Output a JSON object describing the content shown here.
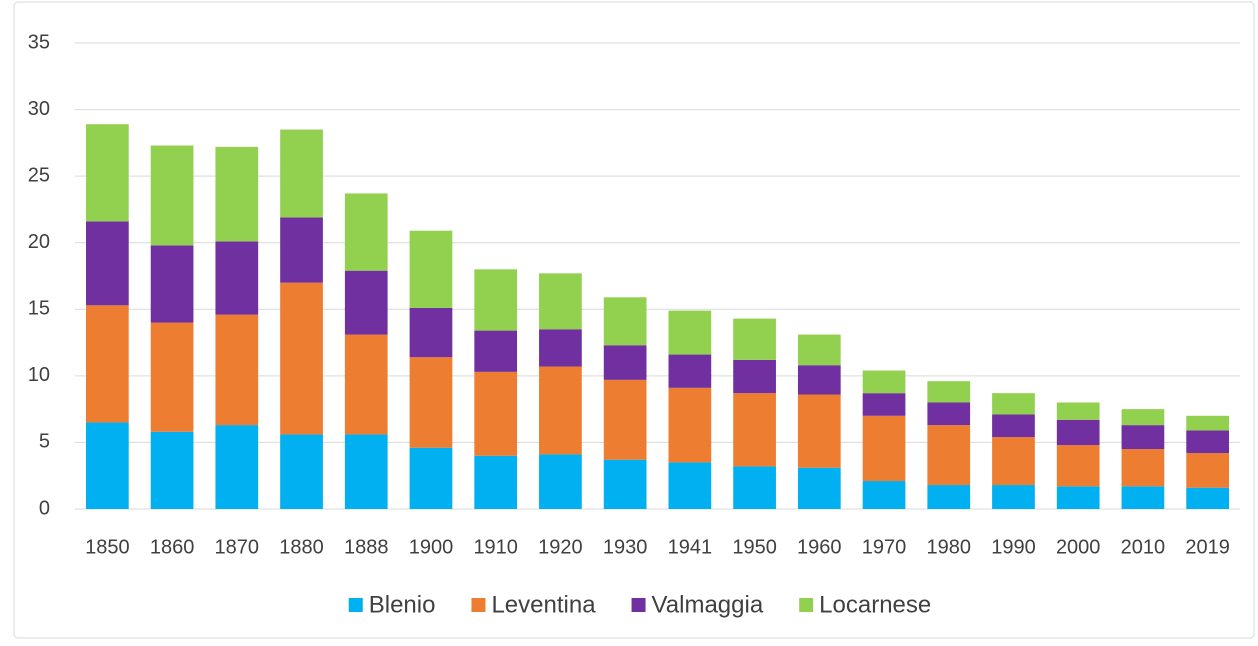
{
  "chart_data": {
    "type": "stacked_bar",
    "categories": [
      "1850",
      "1860",
      "1870",
      "1880",
      "1888",
      "1900",
      "1910",
      "1920",
      "1930",
      "1941",
      "1950",
      "1960",
      "1970",
      "1980",
      "1990",
      "2000",
      "2010",
      "2019"
    ],
    "series": [
      {
        "name": "Blenio",
        "color": "#00b0f0",
        "values": [
          6.5,
          5.8,
          6.3,
          5.6,
          5.6,
          4.6,
          4.0,
          4.1,
          3.7,
          3.5,
          3.2,
          3.1,
          2.1,
          1.8,
          1.8,
          1.7,
          1.7,
          1.6
        ]
      },
      {
        "name": "Leventina",
        "color": "#ed7d31",
        "values": [
          8.8,
          8.2,
          8.3,
          11.4,
          7.5,
          6.8,
          6.3,
          6.6,
          6.0,
          5.6,
          5.5,
          5.5,
          4.9,
          4.5,
          3.6,
          3.1,
          2.8,
          2.6
        ]
      },
      {
        "name": "Valmaggia",
        "color": "#7030a0",
        "values": [
          6.3,
          5.8,
          5.5,
          4.9,
          4.8,
          3.7,
          3.1,
          2.8,
          2.6,
          2.5,
          2.5,
          2.2,
          1.7,
          1.7,
          1.7,
          1.9,
          1.8,
          1.7
        ]
      },
      {
        "name": "Locarnese",
        "color": "#92d050",
        "values": [
          7.3,
          7.5,
          7.1,
          6.6,
          5.8,
          5.8,
          4.6,
          4.2,
          3.6,
          3.3,
          3.1,
          2.3,
          1.7,
          1.6,
          1.6,
          1.3,
          1.2,
          1.1
        ]
      }
    ],
    "ylim": [
      0,
      35
    ],
    "yticks": [
      0,
      5,
      10,
      15,
      20,
      25,
      30,
      35
    ],
    "grid": true,
    "legend": "bottom"
  }
}
